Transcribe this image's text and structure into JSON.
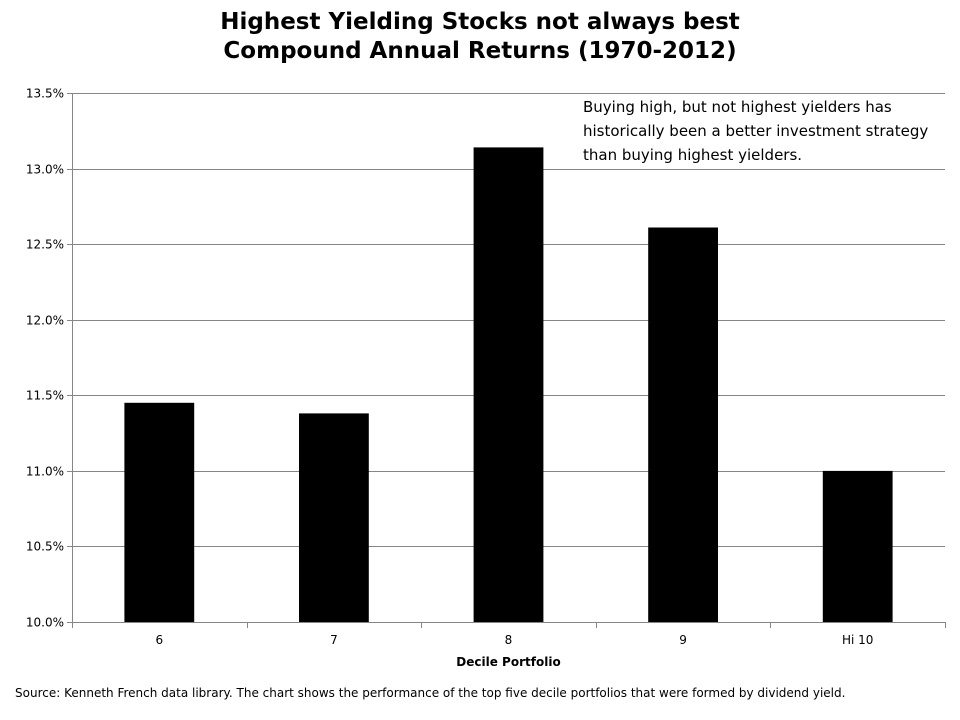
{
  "chart_data": {
    "type": "bar",
    "title_lines": [
      "Highest Yielding Stocks not always best",
      "Compound Annual Returns (1970-2012)"
    ],
    "xlabel": "Decile Portfolio",
    "ylabel": "",
    "categories": [
      "6",
      "7",
      "8",
      "9",
      "Hi 10"
    ],
    "values": [
      11.45,
      11.38,
      13.14,
      12.61,
      11.0
    ],
    "ylim": [
      10.0,
      13.5
    ],
    "yticks": [
      10.0,
      10.5,
      11.0,
      11.5,
      12.0,
      12.5,
      13.0,
      13.5
    ],
    "ytick_labels": [
      "10.0%",
      "10.5%",
      "11.0%",
      "11.5%",
      "12.0%",
      "12.5%",
      "13.0%",
      "13.5%"
    ],
    "grid": true,
    "bar_color": "#000000",
    "grid_color": "#868686",
    "annotation": "Buying high, but not highest yielders has historically been a better investment strategy than buying highest yielders.",
    "source": "Source: Kenneth French data library. The chart shows the performance of the top five decile portfolios that were formed by dividend yield."
  }
}
